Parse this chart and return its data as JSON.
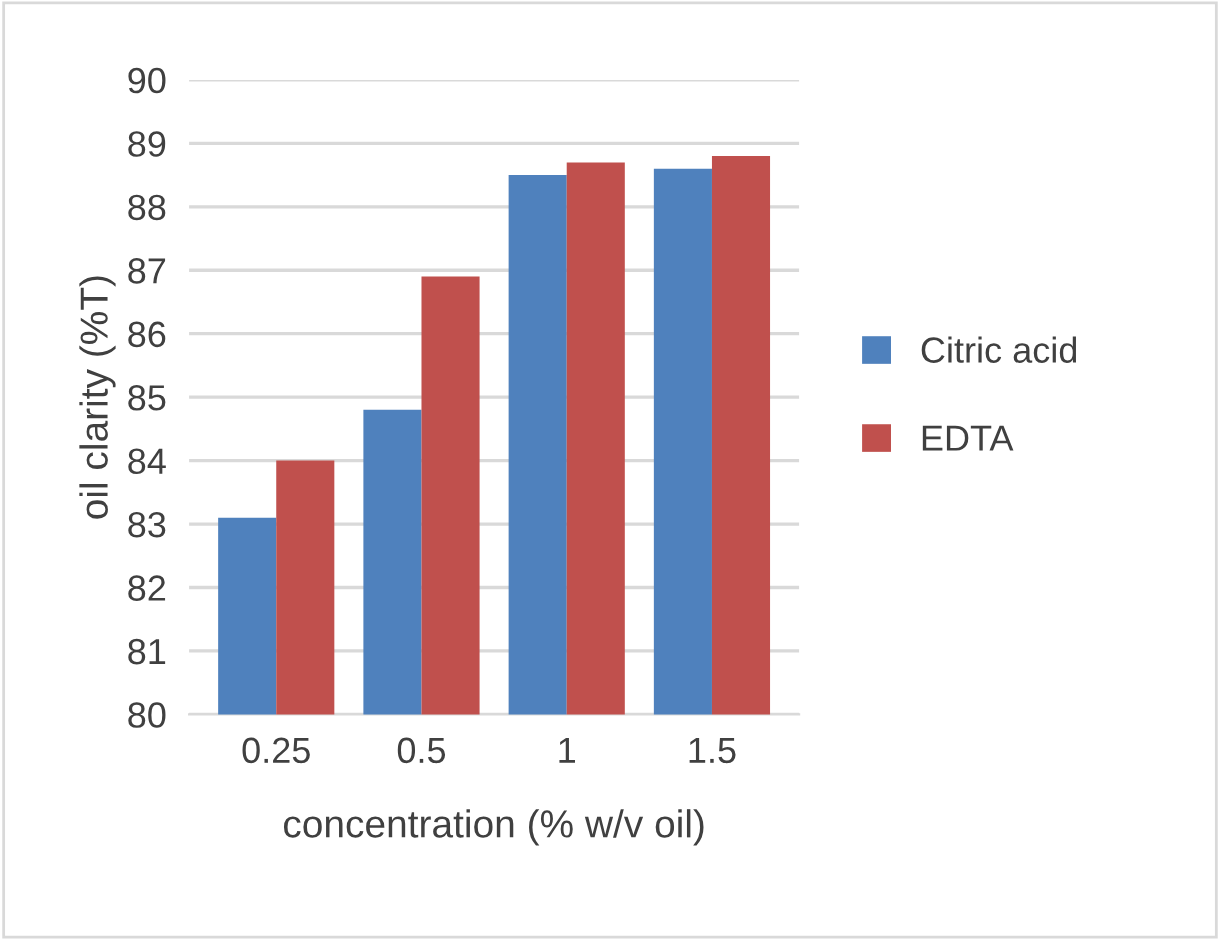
{
  "chart_data": {
    "type": "bar",
    "xlabel": "concentration (% w/v oil)",
    "ylabel": "oil clarity (%T)",
    "categories": [
      "0.25",
      "0.5",
      "1",
      "1.5"
    ],
    "series": [
      {
        "name": "Citric acid",
        "color": "#4f81bd",
        "values": [
          83.1,
          84.8,
          88.5,
          88.6
        ]
      },
      {
        "name": "EDTA",
        "color": "#c0504d",
        "values": [
          84.0,
          86.9,
          88.7,
          88.8
        ]
      }
    ],
    "ylim": [
      80,
      90
    ],
    "yticks": [
      80,
      81,
      82,
      83,
      84,
      85,
      86,
      87,
      88,
      89,
      90
    ],
    "grid": "y",
    "legend": "right"
  }
}
